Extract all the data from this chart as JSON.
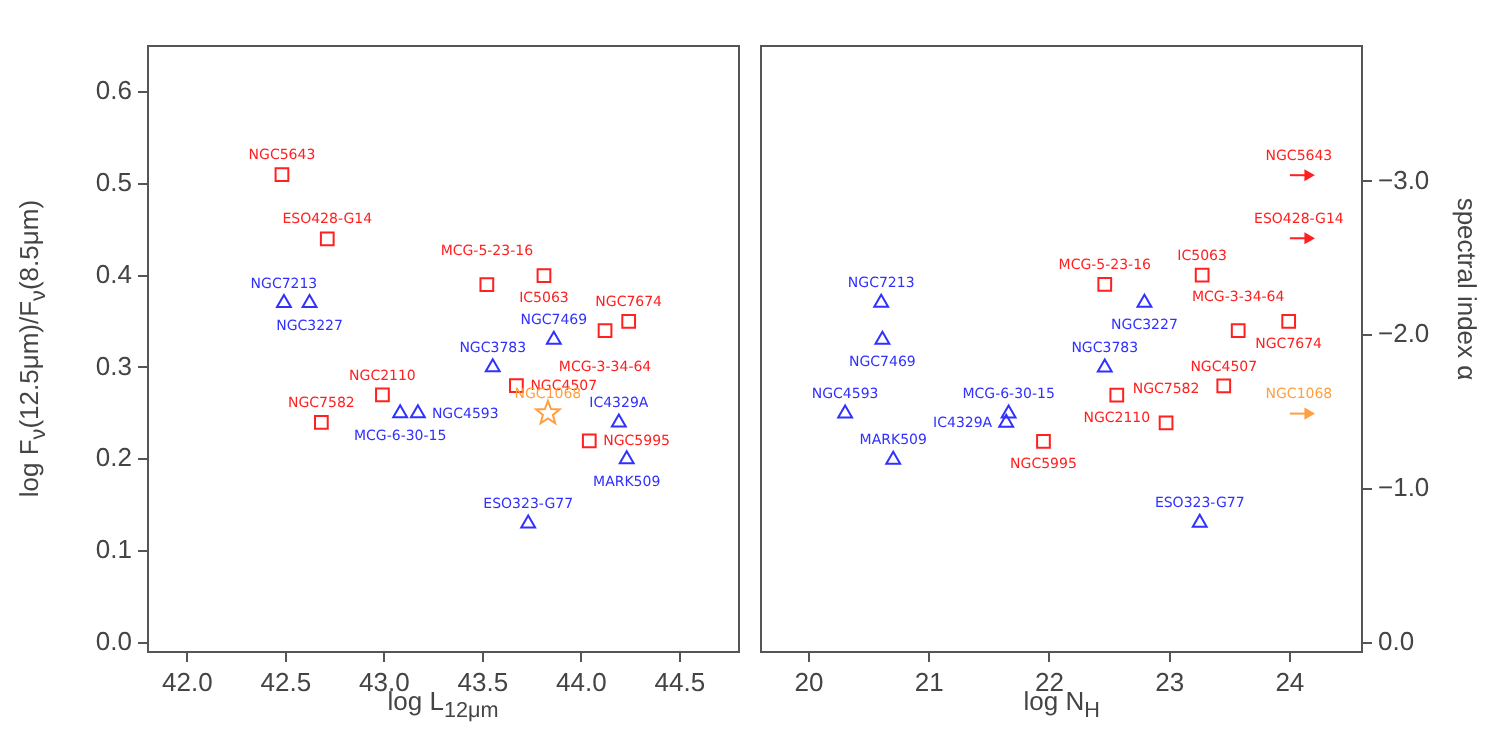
{
  "chart_data": [
    {
      "type": "scatter",
      "xlabel": "log L$_{12μm}$",
      "ylabel": "log F$_{ν}$(12.5μm)/F$_{ν}$(8.5μm)",
      "xlim": [
        41.8,
        44.8
      ],
      "xticks": [
        {
          "value": 42,
          "label": "42.0"
        },
        {
          "value": 42.5,
          "label": "42.5"
        },
        {
          "value": 43,
          "label": "43.0"
        },
        {
          "value": 43.5,
          "label": "43.5"
        },
        {
          "value": 44,
          "label": "44.0"
        },
        {
          "value": 44.5,
          "label": "44.5"
        }
      ],
      "ylim": [
        -0.01,
        0.65
      ],
      "yticks": [
        {
          "value": 0,
          "label": "0.0"
        },
        {
          "value": 0.1,
          "label": "0.1"
        },
        {
          "value": 0.2,
          "label": "0.2"
        },
        {
          "value": 0.3,
          "label": "0.3"
        },
        {
          "value": 0.4,
          "label": "0.4"
        },
        {
          "value": 0.5,
          "label": "0.5"
        },
        {
          "value": 0.6,
          "label": "0.6"
        }
      ],
      "series": [
        {
          "color": "#ff2020",
          "marker": "square",
          "x": [
            42.48,
            42.71,
            43.52,
            43.81,
            44.12,
            44.24,
            43.67,
            42.99,
            42.68,
            44.04
          ],
          "values": [
            0.51,
            0.44,
            0.39,
            0.4,
            0.34,
            0.35,
            0.28,
            0.27,
            0.24,
            0.22
          ]
        },
        {
          "color": "#3030ff",
          "marker": "triangle",
          "x": [
            42.49,
            42.62,
            43.86,
            43.55,
            43.08,
            43.17,
            44.19,
            44.23,
            43.73
          ],
          "values": [
            0.37,
            0.37,
            0.33,
            0.3,
            0.25,
            0.25,
            0.24,
            0.2,
            0.13
          ]
        },
        {
          "color": "#ffa040",
          "marker": "star",
          "x": [
            43.83
          ],
          "values": [
            0.25
          ]
        }
      ],
      "annotations": [
        {
          "text": "NGC5643",
          "x": 42.48,
          "y": 0.51
        },
        {
          "text": "ESO428-G14",
          "x": 42.71,
          "y": 0.44
        },
        {
          "text": "MCG-5-23-16",
          "x": 43.52,
          "y": 0.39
        },
        {
          "text": "IC5063",
          "x": 43.81,
          "y": 0.4
        },
        {
          "text": "MCG-3-34-64",
          "x": 44.12,
          "y": 0.34
        },
        {
          "text": "NGC7674",
          "x": 44.24,
          "y": 0.35
        },
        {
          "text": "NGC4507",
          "x": 43.67,
          "y": 0.28
        },
        {
          "text": "NGC2110",
          "x": 42.99,
          "y": 0.27
        },
        {
          "text": "NGC7582",
          "x": 42.68,
          "y": 0.24
        },
        {
          "text": "NGC5995",
          "x": 44.04,
          "y": 0.22
        },
        {
          "text": "NGC7213",
          "x": 42.49,
          "y": 0.37
        },
        {
          "text": "NGC3227",
          "x": 42.62,
          "y": 0.37
        },
        {
          "text": "NGC7469",
          "x": 43.86,
          "y": 0.33
        },
        {
          "text": "NGC3783",
          "x": 43.55,
          "y": 0.3
        },
        {
          "text": "MCG-6-30-15",
          "x": 43.08,
          "y": 0.25
        },
        {
          "text": "NGC4593",
          "x": 43.17,
          "y": 0.25
        },
        {
          "text": "IC4329A",
          "x": 44.19,
          "y": 0.24
        },
        {
          "text": "MARK509",
          "x": 44.23,
          "y": 0.2
        },
        {
          "text": "ESO323-G77",
          "x": 43.73,
          "y": 0.13
        },
        {
          "text": "NGC1068",
          "x": 43.83,
          "y": 0.25
        }
      ]
    },
    {
      "type": "scatter",
      "xlabel": "log N$_{H}$",
      "ylabel": "spectral index α",
      "xlim": [
        19.6,
        24.6
      ],
      "xticks": [
        20,
        21,
        22,
        23,
        24
      ],
      "ylim": [
        0.06,
        -3.88
      ],
      "yticks": [
        {
          "value": 0,
          "label": "0.0"
        },
        {
          "value": -1,
          "label": "−1.0"
        },
        {
          "value": -2,
          "label": "−2.0"
        },
        {
          "value": -3,
          "label": "−3.0"
        }
      ],
      "series": [
        {
          "color": "#ff2020",
          "marker": "square",
          "x": [
            22.46,
            23.27,
            23.57,
            23.99,
            23.45,
            22.56,
            22.97,
            21.95
          ],
          "values": [
            -2.33,
            -2.39,
            -2.03,
            -2.09,
            -1.67,
            -1.61,
            -1.43,
            -1.31
          ]
        },
        {
          "color": "#ff2020",
          "marker": "triangle",
          "x": [
            24.15,
            24.15
          ],
          "values": [
            -3.04,
            -2.63
          ],
          "xerrors": [
            [
              24.0,
              24.15
            ],
            [
              24.0,
              24.15
            ]
          ]
        },
        {
          "color": "#ffa040",
          "marker": "triangle",
          "x": [
            24.15
          ],
          "values": [
            -1.49
          ],
          "xerrors": [
            [
              24.0,
              24.15
            ]
          ]
        },
        {
          "color": "#3030ff",
          "marker": "triangle",
          "x": [
            20.6,
            22.79,
            20.61,
            22.46,
            21.66,
            20.3,
            21.64,
            20.7,
            23.25
          ],
          "values": [
            -2.21,
            -2.21,
            -1.97,
            -1.79,
            -1.49,
            -1.49,
            -1.43,
            -1.19,
            -0.78
          ]
        }
      ],
      "annotations": [
        {
          "text": "MCG-5-23-16",
          "x": 22.46,
          "y": -2.33
        },
        {
          "text": "IC5063",
          "x": 23.27,
          "y": -2.39
        },
        {
          "text": "MCG-3-34-64",
          "x": 23.57,
          "y": -2.03
        },
        {
          "text": "NGC7674",
          "x": 23.99,
          "y": -2.09
        },
        {
          "text": "NGC4507",
          "x": 23.45,
          "y": -1.67
        },
        {
          "text": "NGC2110",
          "x": 22.56,
          "y": -1.61
        },
        {
          "text": "NGC7582",
          "x": 22.97,
          "y": -1.43
        },
        {
          "text": "NGC5995",
          "x": 21.95,
          "y": -1.31
        },
        {
          "text": "NGC5643",
          "x": 24.15,
          "y": -3.04
        },
        {
          "text": "ESO428-G14",
          "x": 24.15,
          "y": -2.63
        },
        {
          "text": "NGC1068",
          "x": 24.15,
          "y": -1.49
        },
        {
          "text": "NGC7213",
          "x": 20.6,
          "y": -2.21
        },
        {
          "text": "NGC3227",
          "x": 22.79,
          "y": -2.21
        },
        {
          "text": "NGC7469",
          "x": 20.61,
          "y": -1.97
        },
        {
          "text": "NGC3783",
          "x": 22.46,
          "y": -1.79
        },
        {
          "text": "MCG-6-30-15",
          "x": 21.66,
          "y": -1.49
        },
        {
          "text": "NGC4593",
          "x": 20.3,
          "y": -1.49
        },
        {
          "text": "IC4329A",
          "x": 21.64,
          "y": -1.43
        },
        {
          "text": "MARK509",
          "x": 20.7,
          "y": -1.19
        },
        {
          "text": "ESO323-G77",
          "x": 23.25,
          "y": -0.78
        }
      ]
    }
  ]
}
